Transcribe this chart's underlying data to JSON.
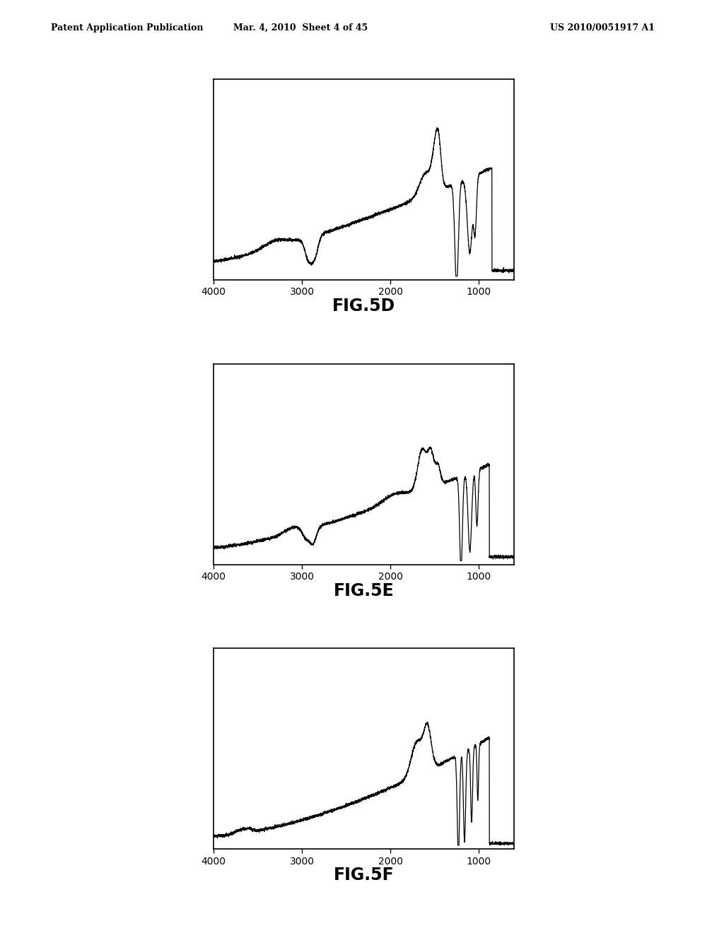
{
  "header_left": "Patent Application Publication",
  "header_mid": "Mar. 4, 2010  Sheet 4 of 45",
  "header_right": "US 2010/0051917 A1",
  "fig_labels": [
    "FIG.5D",
    "FIG.5E",
    "FIG.5F"
  ],
  "bg_color": "#ffffff",
  "line_color": "#000000",
  "xticks": [
    4000,
    3000,
    2000,
    1000
  ]
}
